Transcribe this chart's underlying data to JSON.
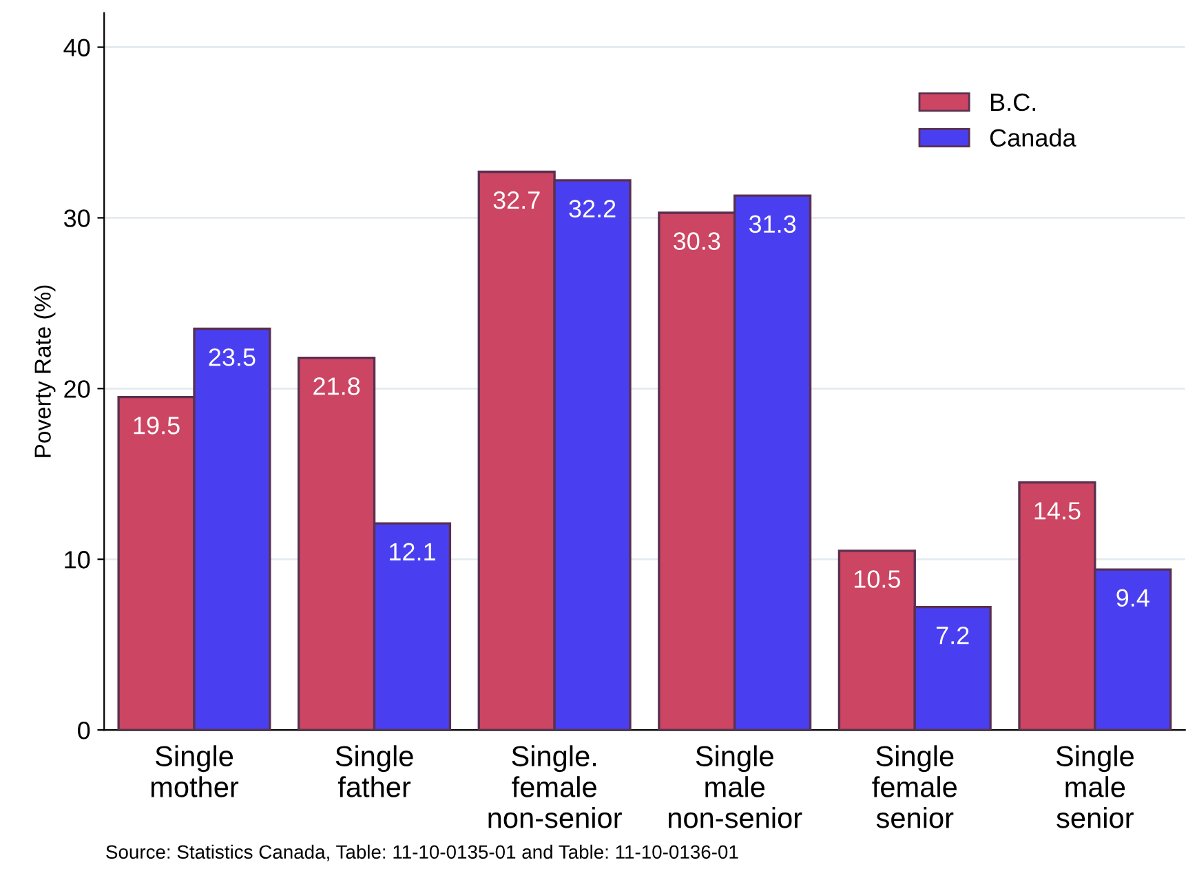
{
  "chart_data": {
    "type": "bar",
    "categories": [
      "Single\nmother",
      "Single\nfather",
      "Single.\nfemale\nnon-senior",
      "Single\nmale\nnon-senior",
      "Single\nfemale\nsenior",
      "Single\nmale\nsenior"
    ],
    "series": [
      {
        "name": "B.C.",
        "color": "#cc4563",
        "values": [
          19.5,
          21.8,
          32.7,
          30.3,
          10.5,
          14.5
        ]
      },
      {
        "name": "Canada",
        "color": "#4a3ff0",
        "values": [
          23.5,
          12.1,
          32.2,
          31.3,
          7.2,
          9.4
        ]
      }
    ],
    "ylabel": "Poverty Rate (%)",
    "ylim": [
      0,
      42
    ],
    "yticks": [
      0,
      10,
      20,
      30,
      40
    ],
    "grid": "y",
    "legend": "top right",
    "data_labels": true,
    "annotations": [
      "Source: Statistics Canada, Table: 11-10-0135-01 and Table: 11-10-0136-01"
    ]
  }
}
